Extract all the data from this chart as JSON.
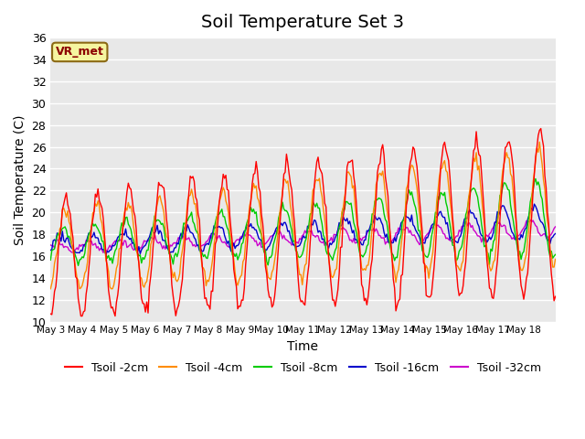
{
  "title": "Soil Temperature Set 3",
  "xlabel": "Time",
  "ylabel": "Soil Temperature (C)",
  "ylim": [
    10,
    36
  ],
  "yticks": [
    10,
    12,
    14,
    16,
    18,
    20,
    22,
    24,
    26,
    28,
    30,
    32,
    34,
    36
  ],
  "x_labels": [
    "May 3",
    "May 4",
    "May 5",
    "May 6",
    "May 7",
    "May 8",
    "May 9",
    "May 10",
    "May 11",
    "May 12",
    "May 13",
    "May 14",
    "May 15",
    "May 16",
    "May 17",
    "May 18"
  ],
  "num_days": 16,
  "annotation_text": "VR_met",
  "annotation_bg": "#f5f5a0",
  "annotation_border": "#8b6914",
  "colors": {
    "tsoil_2cm": "#ff0000",
    "tsoil_4cm": "#ff8c00",
    "tsoil_8cm": "#00cc00",
    "tsoil_16cm": "#0000cc",
    "tsoil_32cm": "#cc00cc"
  },
  "legend_labels": [
    "Tsoil -2cm",
    "Tsoil -4cm",
    "Tsoil -8cm",
    "Tsoil -16cm",
    "Tsoil -32cm"
  ],
  "bg_color": "#e8e8e8",
  "grid_color": "#ffffff",
  "title_fontsize": 14,
  "label_fontsize": 10
}
